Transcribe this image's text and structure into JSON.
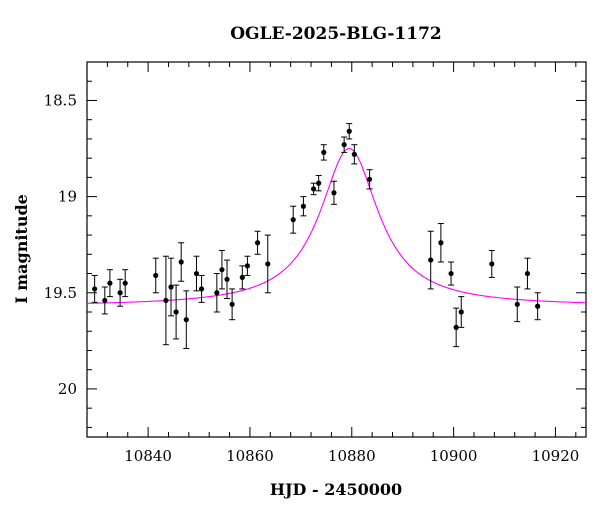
{
  "chart_data": {
    "type": "scatter",
    "title": "OGLE-2025-BLG-1172",
    "xlabel": "HJD - 2450000",
    "ylabel": "I magnitude",
    "xlim": [
      10828,
      10926
    ],
    "ylim": [
      20.25,
      18.3
    ],
    "y_inverted": true,
    "x_major_ticks": [
      10840,
      10860,
      10880,
      10900,
      10920
    ],
    "x_tick_labels": [
      "10840",
      "10860",
      "10880",
      "10900",
      "10920"
    ],
    "x_minor_step": 4,
    "y_major_ticks": [
      18.5,
      19,
      19.5,
      20
    ],
    "y_tick_labels": [
      "18.5",
      "19",
      "19.5",
      "20"
    ],
    "y_minor_step": 0.1,
    "grid": false,
    "colors": {
      "points": "#000000",
      "model": "#ff00ff"
    },
    "series": [
      {
        "kind": "points_with_errorbars",
        "x": [
          10829.5,
          10831.5,
          10832.5,
          10834.5,
          10835.5,
          10841.5,
          10843.5,
          10844.5,
          10845.5,
          10846.5,
          10847.5,
          10849.5,
          10850.5,
          10853.5,
          10854.5,
          10855.5,
          10856.5,
          10858.5,
          10859.5,
          10861.5,
          10863.5,
          10868.5,
          10870.5,
          10872.5,
          10873.5,
          10874.5,
          10876.5,
          10878.5,
          10879.5,
          10880.5,
          10883.5,
          10895.5,
          10897.5,
          10899.5,
          10900.5,
          10901.5,
          10907.5,
          10912.5,
          10914.5,
          10916.5
        ],
        "y": [
          19.48,
          19.54,
          19.45,
          19.5,
          19.45,
          19.41,
          19.54,
          19.47,
          19.6,
          19.34,
          19.64,
          19.4,
          19.48,
          19.5,
          19.38,
          19.43,
          19.56,
          19.42,
          19.36,
          19.24,
          19.35,
          19.12,
          19.05,
          18.96,
          18.93,
          18.77,
          18.98,
          18.73,
          18.66,
          18.78,
          18.91,
          19.33,
          19.24,
          19.4,
          19.68,
          19.6,
          19.35,
          19.56,
          19.4,
          19.57
        ],
        "yerr": [
          0.07,
          0.07,
          0.07,
          0.07,
          0.07,
          0.09,
          0.23,
          0.15,
          0.14,
          0.1,
          0.15,
          0.09,
          0.07,
          0.1,
          0.1,
          0.1,
          0.08,
          0.06,
          0.05,
          0.06,
          0.15,
          0.07,
          0.05,
          0.03,
          0.04,
          0.04,
          0.06,
          0.04,
          0.04,
          0.05,
          0.05,
          0.15,
          0.1,
          0.06,
          0.1,
          0.08,
          0.07,
          0.09,
          0.08,
          0.07
        ]
      },
      {
        "kind": "model_curve",
        "shape": "lorentzian",
        "peak_x": 10879.5,
        "peak_mag": 18.75,
        "baseline_mag": 19.57,
        "half_width": 7.0
      }
    ]
  }
}
